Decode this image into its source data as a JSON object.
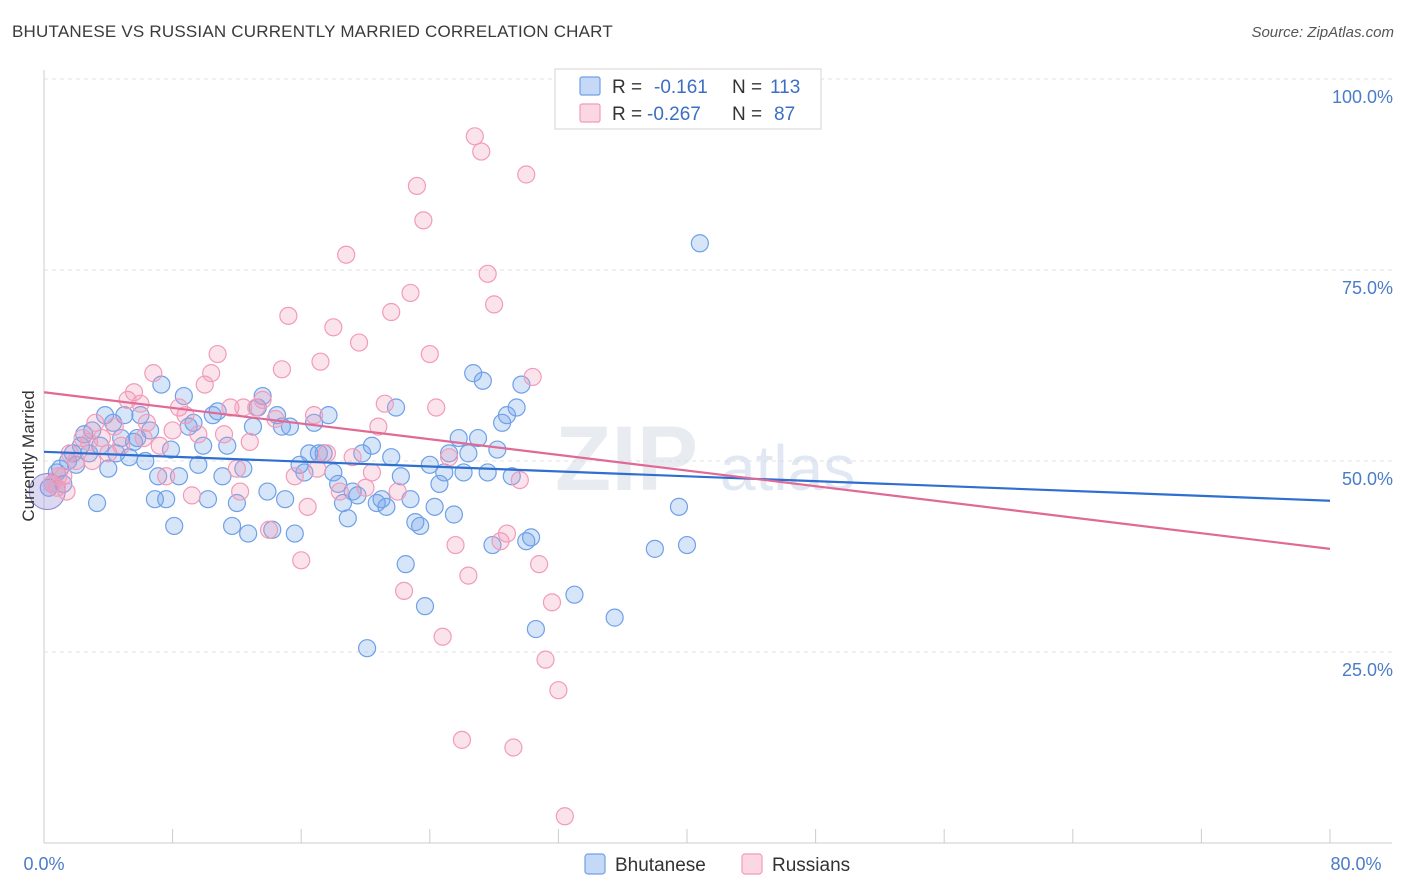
{
  "header": {
    "title": "BHUTANESE VS RUSSIAN CURRENTLY MARRIED CORRELATION CHART",
    "source": "Source: ZipAtlas.com"
  },
  "watermark": {
    "zip": "ZIP",
    "atlas": "atlas"
  },
  "legend": {
    "rows": [
      {
        "r_label": "R =",
        "r_value": "-0.161",
        "n_label": "N =",
        "n_value": "113",
        "color": "#6fa0e8"
      },
      {
        "r_label": "R =",
        "r_value": "-0.267",
        "n_label": "N =",
        "n_value": "87",
        "color": "#f29bb8"
      }
    ]
  },
  "bottom_legend": [
    {
      "label": "Bhutanese",
      "color": "#6fa0e8"
    },
    {
      "label": "Russians",
      "color": "#f29bb8"
    }
  ],
  "chart_data": {
    "type": "scatter",
    "title": "BHUTANESE VS RUSSIAN CURRENTLY MARRIED CORRELATION CHART",
    "xlabel": "",
    "ylabel": "Currently Married",
    "xlim": [
      0,
      80
    ],
    "ylim": [
      0,
      100
    ],
    "x_tick_labels": [
      "0.0%",
      "80.0%"
    ],
    "y_ticks": [
      25,
      50,
      75,
      100
    ],
    "y_tick_labels": [
      "25.0%",
      "50.0%",
      "75.0%",
      "100.0%"
    ],
    "grid": true,
    "legend_position": "top-center",
    "series": [
      {
        "name": "Bhutanese",
        "color": "#6fa0e8",
        "line_color": "#2e6fd0",
        "trend": {
          "x": [
            0,
            80
          ],
          "y": [
            51.2,
            44.8
          ]
        },
        "points": [
          [
            0.3,
            46.5
          ],
          [
            0.5,
            47
          ],
          [
            0.8,
            48.5
          ],
          [
            1.0,
            49
          ],
          [
            1.2,
            47
          ],
          [
            1.5,
            50
          ],
          [
            1.8,
            51
          ],
          [
            2.0,
            49.5
          ],
          [
            2.3,
            52
          ],
          [
            2.5,
            53.5
          ],
          [
            2.8,
            51
          ],
          [
            3.0,
            54
          ],
          [
            3.3,
            44.5
          ],
          [
            3.5,
            52
          ],
          [
            3.8,
            56
          ],
          [
            4.0,
            49
          ],
          [
            4.3,
            55
          ],
          [
            4.5,
            51
          ],
          [
            4.8,
            53
          ],
          [
            5.0,
            56
          ],
          [
            5.3,
            50.5
          ],
          [
            5.6,
            52.5
          ],
          [
            5.8,
            53
          ],
          [
            6.0,
            56
          ],
          [
            6.3,
            50
          ],
          [
            6.6,
            54
          ],
          [
            6.9,
            45
          ],
          [
            7.1,
            48
          ],
          [
            7.3,
            60
          ],
          [
            7.6,
            45
          ],
          [
            7.9,
            51.5
          ],
          [
            8.1,
            41.5
          ],
          [
            8.4,
            48
          ],
          [
            8.7,
            58.5
          ],
          [
            9.0,
            54.5
          ],
          [
            9.3,
            55
          ],
          [
            9.6,
            49.5
          ],
          [
            9.9,
            52
          ],
          [
            10.2,
            45
          ],
          [
            10.5,
            56
          ],
          [
            10.8,
            56.5
          ],
          [
            11.1,
            48
          ],
          [
            11.4,
            52
          ],
          [
            11.7,
            41.5
          ],
          [
            12.0,
            44.5
          ],
          [
            12.4,
            49
          ],
          [
            12.7,
            40.5
          ],
          [
            13.0,
            54.5
          ],
          [
            13.3,
            57
          ],
          [
            13.6,
            58.5
          ],
          [
            13.9,
            46
          ],
          [
            14.2,
            41
          ],
          [
            14.5,
            56
          ],
          [
            14.8,
            54.5
          ],
          [
            15.0,
            45
          ],
          [
            15.3,
            54.5
          ],
          [
            15.6,
            40.5
          ],
          [
            15.9,
            49.5
          ],
          [
            16.2,
            48.5
          ],
          [
            16.5,
            51
          ],
          [
            16.8,
            55
          ],
          [
            17.1,
            51
          ],
          [
            17.4,
            51
          ],
          [
            17.7,
            56
          ],
          [
            18.0,
            48.5
          ],
          [
            18.3,
            47
          ],
          [
            18.6,
            44.5
          ],
          [
            18.9,
            42.5
          ],
          [
            19.2,
            46
          ],
          [
            19.5,
            45.5
          ],
          [
            19.8,
            51
          ],
          [
            20.1,
            25.5
          ],
          [
            20.4,
            52
          ],
          [
            20.7,
            44.5
          ],
          [
            21.0,
            45
          ],
          [
            21.3,
            44
          ],
          [
            21.6,
            50.5
          ],
          [
            21.9,
            57
          ],
          [
            22.2,
            48
          ],
          [
            22.5,
            36.5
          ],
          [
            22.8,
            45
          ],
          [
            23.1,
            42
          ],
          [
            23.4,
            41.5
          ],
          [
            23.7,
            31
          ],
          [
            24.0,
            49.5
          ],
          [
            24.3,
            44
          ],
          [
            24.6,
            47
          ],
          [
            24.9,
            48.5
          ],
          [
            25.2,
            51
          ],
          [
            25.5,
            43
          ],
          [
            25.8,
            53
          ],
          [
            26.1,
            48.5
          ],
          [
            26.4,
            51
          ],
          [
            26.7,
            61.5
          ],
          [
            27.0,
            53
          ],
          [
            27.3,
            60.5
          ],
          [
            27.6,
            48.5
          ],
          [
            27.9,
            39
          ],
          [
            28.2,
            51.5
          ],
          [
            28.5,
            55
          ],
          [
            28.8,
            56
          ],
          [
            29.1,
            48
          ],
          [
            29.4,
            57
          ],
          [
            29.7,
            60
          ],
          [
            30.0,
            39.5
          ],
          [
            30.3,
            40
          ],
          [
            30.6,
            28
          ],
          [
            33.0,
            32.5
          ],
          [
            35.5,
            29.5
          ],
          [
            38.0,
            38.5
          ],
          [
            39.5,
            44
          ],
          [
            40.0,
            39
          ],
          [
            40.8,
            78.5
          ]
        ]
      },
      {
        "name": "Russians",
        "color": "#f29bb8",
        "line_color": "#e06a95",
        "trend": {
          "x": [
            0,
            80
          ],
          "y": [
            59,
            38.5
          ]
        },
        "points": [
          [
            0.5,
            47
          ],
          [
            0.8,
            46.5
          ],
          [
            1.2,
            48
          ],
          [
            1.6,
            51
          ],
          [
            2.0,
            50
          ],
          [
            2.4,
            53
          ],
          [
            2.8,
            52.5
          ],
          [
            3.2,
            55
          ],
          [
            3.6,
            53
          ],
          [
            4.0,
            51
          ],
          [
            4.4,
            54.5
          ],
          [
            4.8,
            52
          ],
          [
            5.2,
            58
          ],
          [
            5.6,
            59
          ],
          [
            6.0,
            57.5
          ],
          [
            6.4,
            55
          ],
          [
            6.8,
            61.5
          ],
          [
            7.2,
            52
          ],
          [
            7.6,
            48
          ],
          [
            8.0,
            54
          ],
          [
            8.4,
            57
          ],
          [
            8.8,
            56
          ],
          [
            9.2,
            45.5
          ],
          [
            9.6,
            53.5
          ],
          [
            10.0,
            60
          ],
          [
            10.4,
            61.5
          ],
          [
            10.8,
            64
          ],
          [
            11.2,
            53.5
          ],
          [
            11.6,
            57
          ],
          [
            12.0,
            49
          ],
          [
            12.4,
            57
          ],
          [
            12.8,
            52.5
          ],
          [
            13.2,
            57
          ],
          [
            13.6,
            58
          ],
          [
            14.0,
            41
          ],
          [
            14.4,
            55.5
          ],
          [
            14.8,
            62
          ],
          [
            15.2,
            69
          ],
          [
            15.6,
            48
          ],
          [
            16.0,
            37
          ],
          [
            16.4,
            44
          ],
          [
            16.8,
            56
          ],
          [
            17.2,
            63
          ],
          [
            17.6,
            51
          ],
          [
            18.0,
            67.5
          ],
          [
            18.4,
            46
          ],
          [
            18.8,
            77
          ],
          [
            19.2,
            50.5
          ],
          [
            19.6,
            65.5
          ],
          [
            20.0,
            46.5
          ],
          [
            20.4,
            48.5
          ],
          [
            20.8,
            54.5
          ],
          [
            21.2,
            57.5
          ],
          [
            21.6,
            69.5
          ],
          [
            22.0,
            46
          ],
          [
            22.4,
            33
          ],
          [
            22.8,
            72
          ],
          [
            23.2,
            86
          ],
          [
            23.6,
            81.5
          ],
          [
            24.0,
            64
          ],
          [
            24.4,
            57
          ],
          [
            24.8,
            27
          ],
          [
            25.2,
            50.5
          ],
          [
            25.6,
            39
          ],
          [
            26.0,
            13.5
          ],
          [
            26.4,
            35
          ],
          [
            26.8,
            92.5
          ],
          [
            27.2,
            90.5
          ],
          [
            27.6,
            74.5
          ],
          [
            28.0,
            70.5
          ],
          [
            28.4,
            39.5
          ],
          [
            28.8,
            40.5
          ],
          [
            29.2,
            12.5
          ],
          [
            29.6,
            47.5
          ],
          [
            30.0,
            87.5
          ],
          [
            30.4,
            61
          ],
          [
            30.8,
            36.5
          ],
          [
            31.2,
            24
          ],
          [
            31.6,
            31.5
          ],
          [
            32.0,
            20
          ],
          [
            32.4,
            3.5
          ],
          [
            0.9,
            48
          ],
          [
            1.4,
            46
          ],
          [
            3.0,
            50
          ],
          [
            6.2,
            53
          ],
          [
            12.2,
            46
          ],
          [
            17.0,
            49
          ]
        ]
      }
    ]
  }
}
